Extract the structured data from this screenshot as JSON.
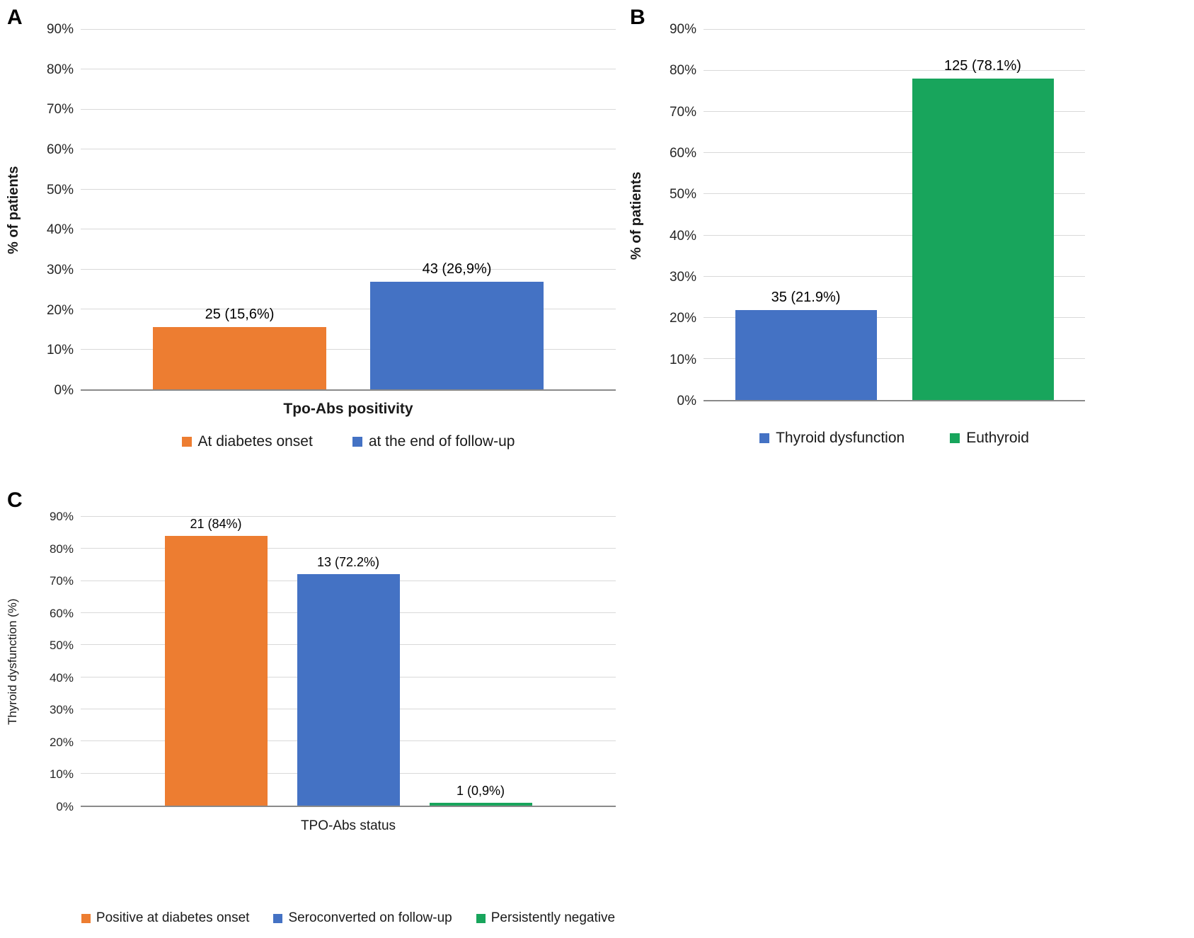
{
  "chart_data": [
    {
      "type": "bar",
      "panel_label": "A",
      "ylabel": "% of patients",
      "xlabel": "Tpo-Abs positivity",
      "ylim": [
        0,
        90
      ],
      "ytick_step": 10,
      "ytick_suffix": "%",
      "grid": true,
      "legend_position": "bottom",
      "bars": [
        {
          "category": "At diabetes onset",
          "count": 25,
          "value": 15.6,
          "data_label": "25 (15,6%)",
          "color": "#ED7D31"
        },
        {
          "category": "at the end of follow-up",
          "count": 43,
          "value": 26.9,
          "data_label": "43 (26,9%)",
          "color": "#4472C4"
        }
      ],
      "legend": [
        {
          "label": "At diabetes onset",
          "color": "#ED7D31"
        },
        {
          "label": "at the end of follow-up",
          "color": "#4472C4"
        }
      ]
    },
    {
      "type": "bar",
      "panel_label": "B",
      "ylabel": "% of patients",
      "xlabel": "",
      "ylim": [
        0,
        90
      ],
      "ytick_step": 10,
      "ytick_suffix": "%",
      "grid": true,
      "legend_position": "bottom",
      "bars": [
        {
          "category": "Thyroid dysfunction",
          "count": 35,
          "value": 21.9,
          "data_label": "35 (21.9%)",
          "color": "#4472C4"
        },
        {
          "category": "Euthyroid",
          "count": 125,
          "value": 78.1,
          "data_label": "125 (78.1%)",
          "color": "#18A55C"
        }
      ],
      "legend": [
        {
          "label": "Thyroid dysfunction",
          "color": "#4472C4"
        },
        {
          "label": "Euthyroid",
          "color": "#18A55C"
        }
      ]
    },
    {
      "type": "bar",
      "panel_label": "C",
      "ylabel": "Thyroid dysfunction (%)",
      "xlabel": "TPO-Abs status",
      "ylim": [
        0,
        90
      ],
      "ytick_step": 10,
      "ytick_suffix": "%",
      "grid": true,
      "legend_position": "bottom",
      "bars": [
        {
          "category": "Positive at diabetes onset",
          "count": 21,
          "value": 84,
          "data_label": "21 (84%)",
          "color": "#ED7D31"
        },
        {
          "category": "Seroconverted on follow-up",
          "count": 13,
          "value": 72.2,
          "data_label": "13 (72.2%)",
          "color": "#4472C4"
        },
        {
          "category": "Persistently negative",
          "count": 1,
          "value": 0.9,
          "data_label": "1 (0,9%)",
          "color": "#18A55C"
        }
      ],
      "legend": [
        {
          "label": "Positive at diabetes onset",
          "color": "#ED7D31"
        },
        {
          "label": "Seroconverted on follow-up",
          "color": "#4472C4"
        },
        {
          "label": "Persistently negative",
          "color": "#18A55C"
        }
      ]
    }
  ]
}
